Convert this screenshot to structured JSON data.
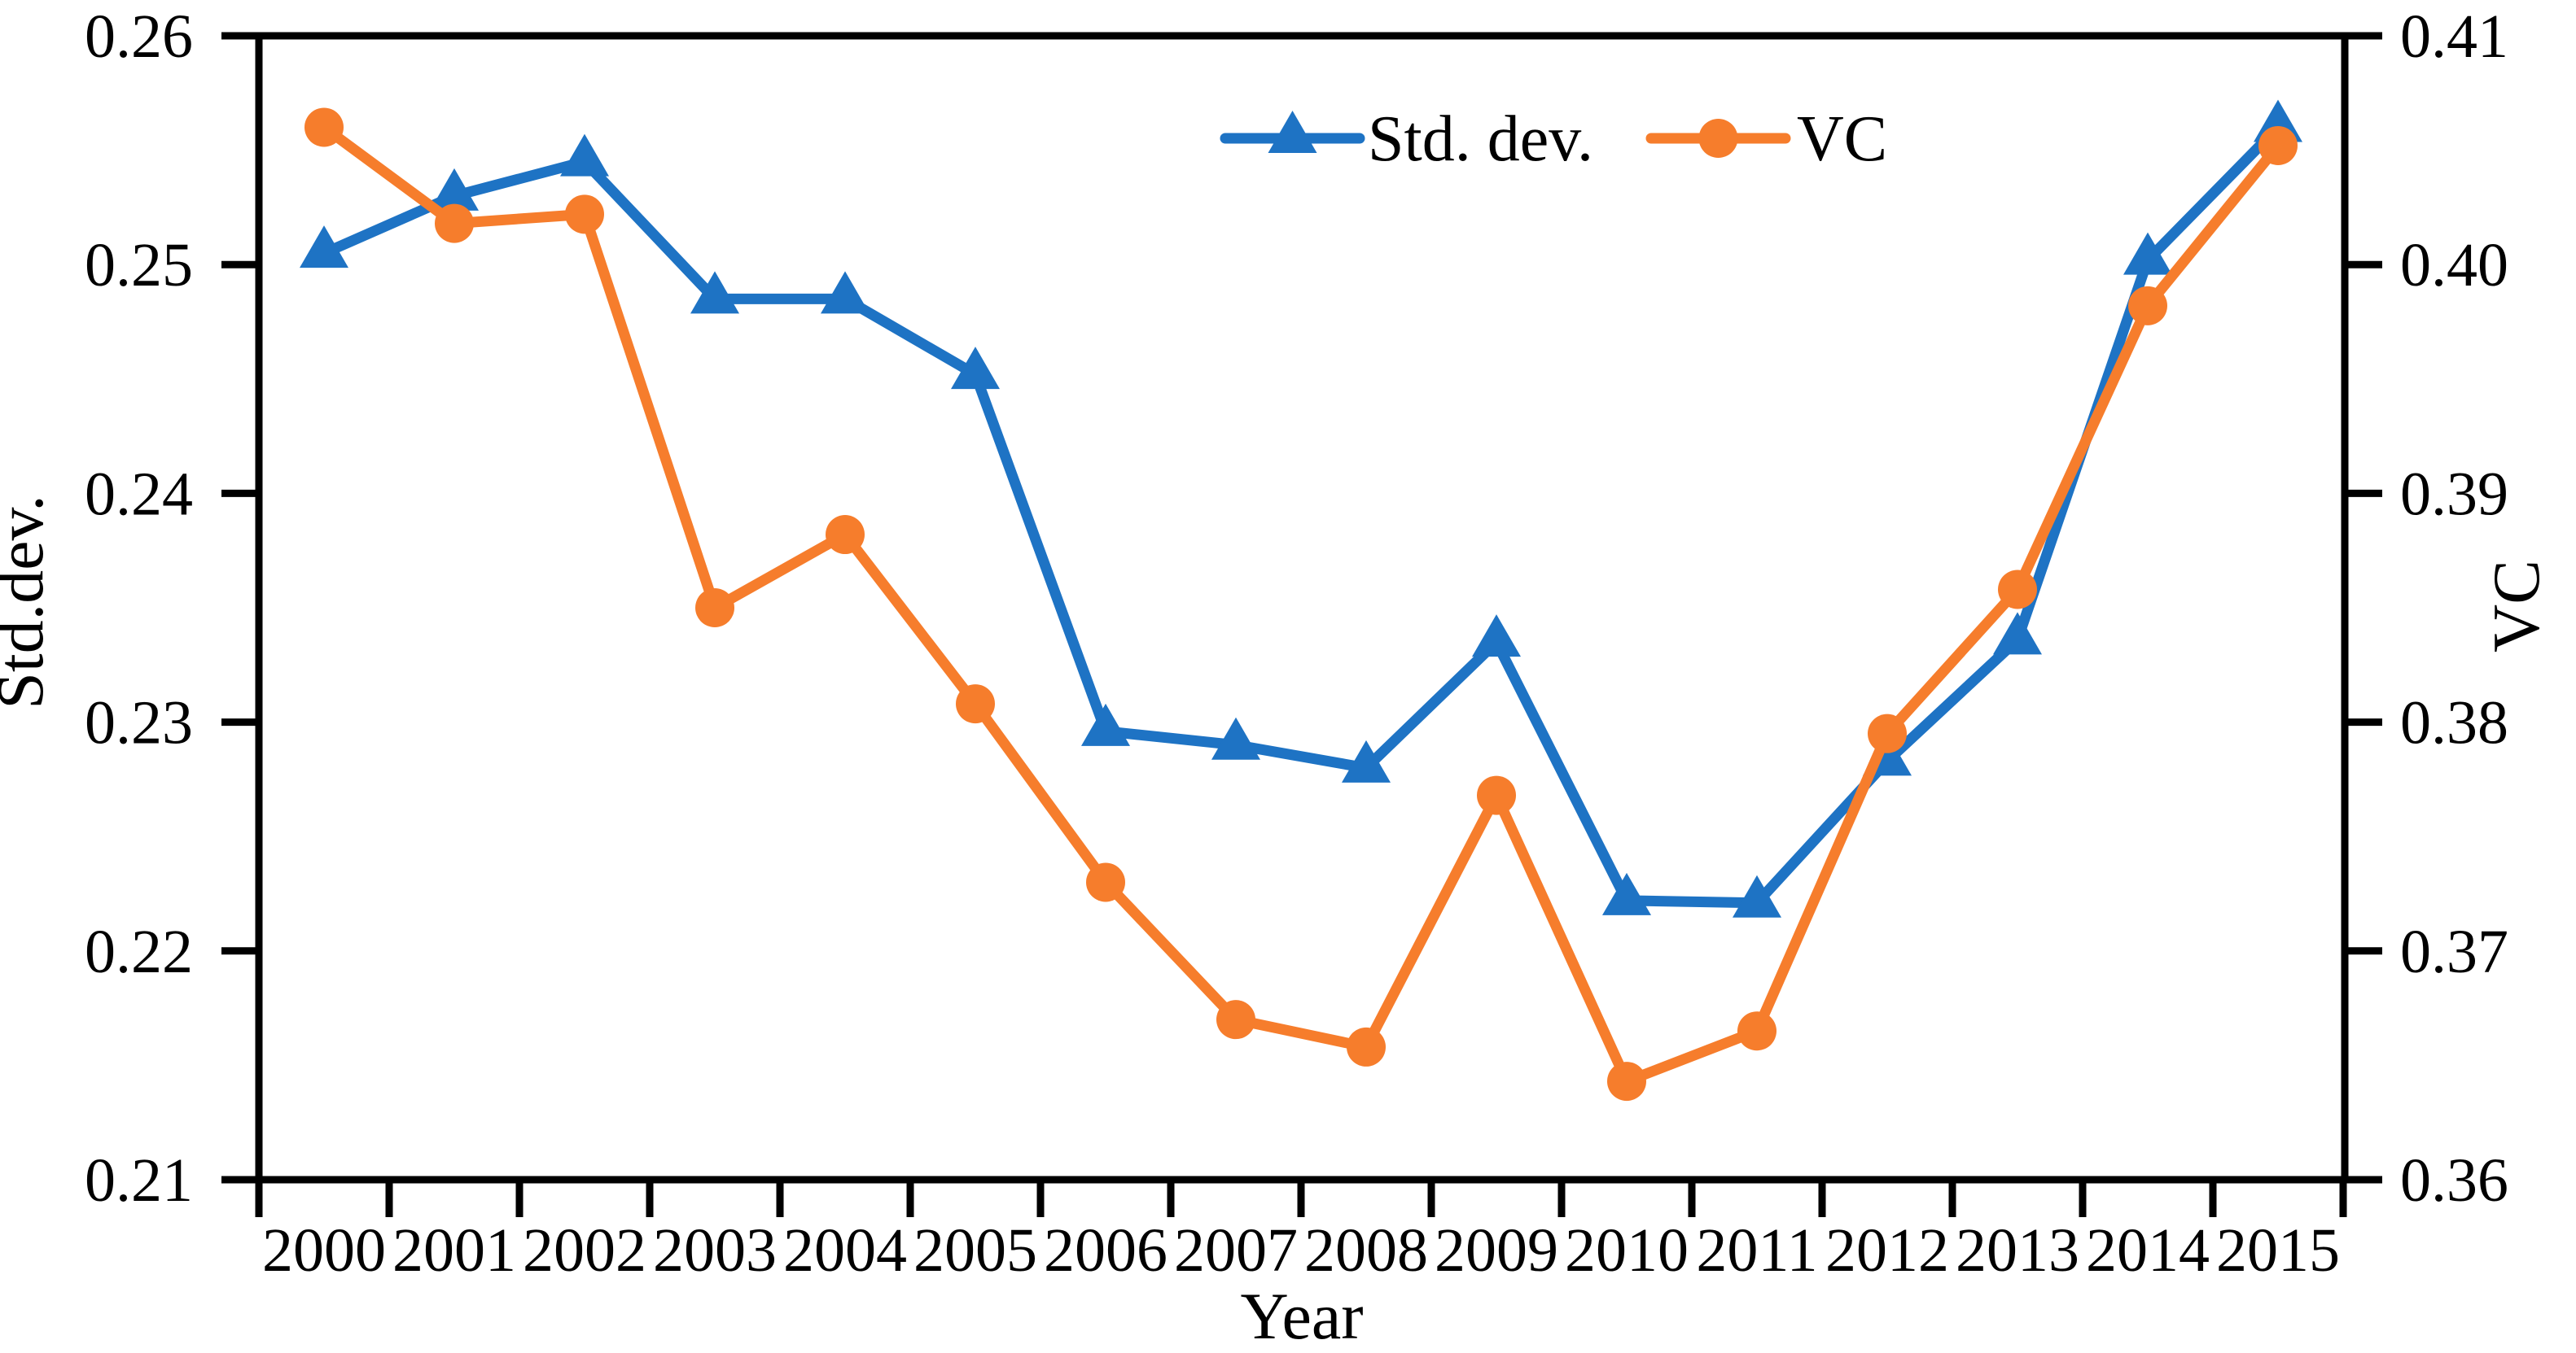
{
  "chart_data": {
    "type": "line",
    "title": "",
    "xlabel": "Year",
    "x": [
      2000,
      2001,
      2002,
      2003,
      2004,
      2005,
      2006,
      2007,
      2008,
      2009,
      2010,
      2011,
      2012,
      2013,
      2014,
      2015
    ],
    "x_tick_labels": [
      "2000",
      "2001",
      "2002",
      "2003",
      "2004",
      "2005",
      "2006",
      "2007",
      "2008",
      "2009",
      "2010",
      "2011",
      "2012",
      "2013",
      "2014",
      "2015"
    ],
    "series": [
      {
        "name": "Std. dev.",
        "axis": "left",
        "marker": "triangle",
        "color": "#1E73C4",
        "values": [
          0.2505,
          0.253,
          0.2545,
          0.2485,
          0.2485,
          0.2452,
          0.2296,
          0.229,
          0.228,
          0.2335,
          0.2222,
          0.2221,
          0.2283,
          0.2336,
          0.2502,
          0.256
        ]
      },
      {
        "name": "VC",
        "axis": "right",
        "marker": "circle",
        "color": "#F67D2C",
        "values": [
          0.406,
          0.4018,
          0.4022,
          0.385,
          0.3882,
          0.3808,
          0.373,
          0.367,
          0.3658,
          0.3768,
          0.3643,
          0.3665,
          0.3795,
          0.3858,
          0.3982,
          0.4052
        ]
      }
    ],
    "left_axis": {
      "label": "Std.dev.",
      "min": 0.21,
      "max": 0.26,
      "tick_labels": [
        "0.21",
        "0.22",
        "0.23",
        "0.24",
        "0.25",
        "0.26"
      ]
    },
    "right_axis": {
      "label": "VC",
      "min": 0.36,
      "max": 0.41,
      "tick_labels": [
        "0.36",
        "0.37",
        "0.38",
        "0.39",
        "0.40",
        "0.41"
      ]
    },
    "legend": {
      "position": "top-center",
      "entries": [
        "Std. dev.",
        "VC"
      ]
    },
    "grid": false,
    "axis_color": "#000000",
    "background": "#FFFFFF"
  }
}
